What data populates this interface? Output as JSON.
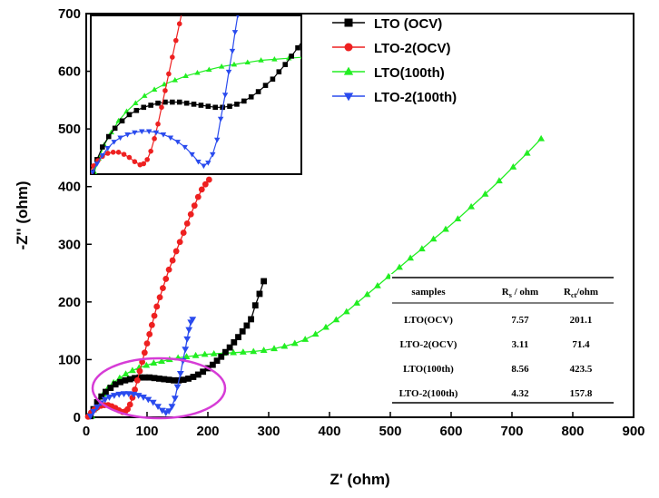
{
  "chart_data": {
    "type": "scatter",
    "xlabel": "Z' (ohm)",
    "ylabel": "-Z'' (ohm)",
    "xlim": [
      0,
      900
    ],
    "ylim": [
      0,
      700
    ],
    "xticks": [
      "0",
      "100",
      "200",
      "300",
      "400",
      "500",
      "600",
      "700",
      "800",
      "900"
    ],
    "yticks": [
      "0",
      "100",
      "200",
      "300",
      "400",
      "500",
      "600",
      "700"
    ],
    "legend_position": "top-right",
    "series": [
      {
        "name": "LTO (OCV)",
        "color": "#000000",
        "marker": "square",
        "x": [
          7,
          12,
          18,
          25,
          32,
          40,
          48,
          56,
          64,
          72,
          80,
          88,
          96,
          104,
          112,
          120,
          128,
          136,
          144,
          152,
          160,
          168,
          176,
          184,
          192,
          200,
          208,
          215,
          222,
          229,
          236,
          243,
          250,
          257,
          264,
          271,
          278,
          285,
          292
        ],
        "y": [
          2,
          14,
          26,
          36,
          44,
          51,
          57,
          61,
          64,
          66,
          68,
          69,
          69,
          69,
          68,
          67,
          66,
          65,
          64,
          64,
          65,
          67,
          70,
          74,
          79,
          85,
          91,
          98,
          105,
          113,
          121,
          130,
          139,
          149,
          159,
          170,
          194,
          214,
          236
        ]
      },
      {
        "name": "LTO-2(OCV)",
        "color": "#ee2020",
        "marker": "circle",
        "x": [
          3,
          8,
          13,
          18,
          24,
          30,
          36,
          42,
          48,
          54,
          60,
          64,
          68,
          72,
          76,
          80,
          84,
          88,
          92,
          96,
          100,
          104,
          108,
          112,
          116,
          121,
          126,
          131,
          136,
          142,
          148,
          154,
          160,
          166,
          172,
          178,
          184,
          190,
          196,
          202
        ],
        "y": [
          1,
          8,
          13,
          17,
          20,
          21,
          21,
          19,
          16,
          12,
          9,
          10,
          14,
          22,
          34,
          48,
          64,
          80,
          96,
          112,
          128,
          144,
          160,
          176,
          192,
          208,
          224,
          240,
          256,
          272,
          288,
          304,
          320,
          336,
          352,
          367,
          382,
          395,
          404,
          412
        ]
      },
      {
        "name": "LTO(100th)",
        "color": "#22ee22",
        "marker": "triangle-up",
        "x": [
          9,
          14,
          20,
          28,
          36,
          45,
          55,
          65,
          76,
          87,
          99,
          111,
          124,
          137,
          151,
          165,
          180,
          195,
          210,
          226,
          242,
          258,
          275,
          292,
          309,
          326,
          343,
          360,
          377,
          394,
          411,
          428,
          445,
          462,
          479,
          497,
          515,
          533,
          552,
          571,
          591,
          611,
          633,
          656,
          679,
          702,
          725,
          748
        ],
        "y": [
          2,
          15,
          28,
          40,
          51,
          60,
          68,
          75,
          81,
          86,
          90,
          94,
          97,
          100,
          103,
          105,
          107,
          109,
          110,
          111,
          112,
          113,
          114,
          116,
          119,
          123,
          128,
          135,
          144,
          156,
          169,
          183,
          198,
          213,
          228,
          244,
          260,
          276,
          292,
          309,
          326,
          344,
          365,
          387,
          410,
          434,
          458,
          483
        ]
      },
      {
        "name": "LTO-2(100th)",
        "color": "#2a4bee",
        "marker": "triangle-down",
        "x": [
          7,
          12,
          18,
          24,
          31,
          38,
          46,
          54,
          62,
          70,
          78,
          86,
          94,
          102,
          110,
          118,
          125,
          131,
          136,
          141,
          146,
          150,
          155,
          159,
          163,
          166,
          169,
          172,
          175
        ],
        "y": [
          2,
          10,
          18,
          25,
          31,
          35,
          38,
          40,
          41,
          41,
          40,
          38,
          35,
          31,
          26,
          19,
          12,
          8,
          11,
          19,
          33,
          53,
          76,
          98,
          118,
          136,
          152,
          165,
          170
        ]
      }
    ],
    "inset": {
      "description_visible": false,
      "series_order": [
        "LTO (OCV)",
        "LTO-2(OCV)",
        "LTO(100th)",
        "LTO-2(100th)"
      ]
    },
    "table": {
      "headers": [
        "samples",
        "Rs / ohm",
        "Rct/ohm"
      ],
      "header_main": [
        "samples",
        "R",
        "R"
      ],
      "header_sub": [
        "",
        "s",
        "ct"
      ],
      "header_tail": [
        "",
        " / ohm",
        "/ohm"
      ],
      "rows": [
        [
          "LTO(OCV)",
          "7.57",
          "201.1"
        ],
        [
          "LTO-2(OCV)",
          "3.11",
          "71.4"
        ],
        [
          "LTO(100th)",
          "8.56",
          "423.5"
        ],
        [
          "LTO-2(100th)",
          "4.32",
          "157.8"
        ]
      ]
    }
  }
}
